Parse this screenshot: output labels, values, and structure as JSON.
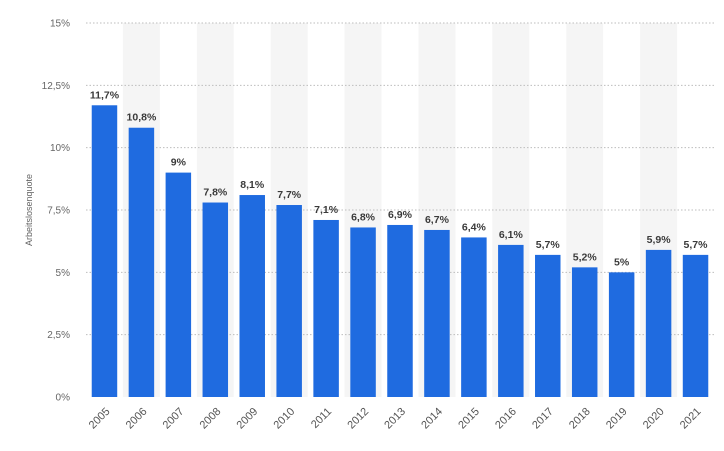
{
  "chart_data": {
    "type": "bar",
    "categories": [
      "2005",
      "2006",
      "2007",
      "2008",
      "2009",
      "2010",
      "2011",
      "2012",
      "2013",
      "2014",
      "2015",
      "2016",
      "2017",
      "2018",
      "2019",
      "2020",
      "2021"
    ],
    "values": [
      11.7,
      10.8,
      9,
      7.8,
      8.1,
      7.7,
      7.1,
      6.8,
      6.9,
      6.7,
      6.4,
      6.1,
      5.7,
      5.2,
      5,
      5.9,
      5.7
    ],
    "value_labels": [
      "11,7%",
      "10,8%",
      "9%",
      "7,8%",
      "8,1%",
      "7,7%",
      "7,1%",
      "6,8%",
      "6,9%",
      "6,7%",
      "6,4%",
      "6,1%",
      "5,7%",
      "5,2%",
      "5%",
      "5,9%",
      "5,7%"
    ],
    "title": "",
    "xlabel": "",
    "ylabel": "Arbeitslosenquote",
    "ylim": [
      0,
      15
    ],
    "y_ticks": [
      0,
      2.5,
      5,
      7.5,
      10,
      12.5,
      15
    ],
    "y_tick_labels": [
      "0%",
      "2,5%",
      "5%",
      "7,5%",
      "10%",
      "12,5%",
      "15%"
    ],
    "grid": true,
    "legend": "none",
    "colors": {
      "bar": "#1f6be0",
      "band": "#f5f5f5",
      "grid": "#bdbdbd"
    }
  }
}
